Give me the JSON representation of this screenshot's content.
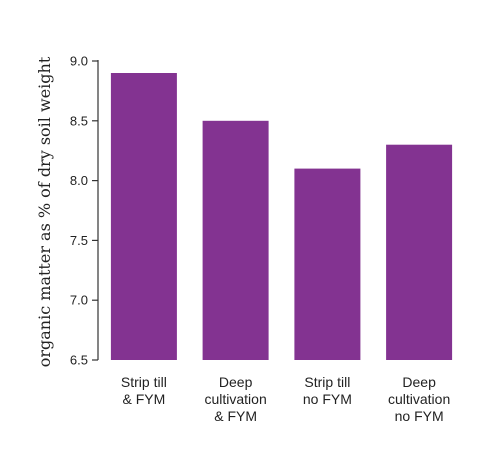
{
  "chart_data": {
    "type": "bar",
    "categories": [
      [
        "Strip till",
        "& FYM"
      ],
      [
        "Deep",
        "cultivation",
        "& FYM"
      ],
      [
        "Strip till",
        "no FYM"
      ],
      [
        "Deep",
        "cultivation",
        "no FYM"
      ]
    ],
    "values": [
      8.9,
      8.5,
      8.1,
      8.3
    ],
    "ylabel": "organic matter as % of dry soil weight",
    "xlabel": "",
    "ylim": [
      6.5,
      9.0
    ],
    "yticks": [
      "6.5",
      "7.0",
      "7.5",
      "8.0",
      "8.5",
      "9.0"
    ],
    "grid": false,
    "bar_color": "#833391",
    "axis_color": "#333333"
  }
}
